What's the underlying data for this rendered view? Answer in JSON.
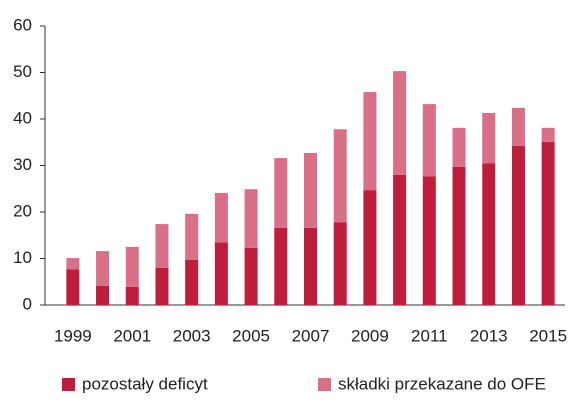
{
  "chart_data": {
    "type": "stacked_bar",
    "categories": [
      "1999",
      null,
      "2001",
      null,
      "2003",
      null,
      "2005",
      null,
      "2007",
      null,
      "2009",
      null,
      "2011",
      null,
      "2013",
      null,
      "2015"
    ],
    "series": [
      {
        "name": "pozostały deficyt",
        "color": "#be1e3c",
        "values": [
          7.7,
          4.1,
          3.9,
          8.0,
          9.7,
          13.5,
          12.3,
          16.6,
          16.6,
          17.8,
          24.7,
          28.0,
          27.7,
          29.7,
          30.5,
          34.2,
          35.1
        ]
      },
      {
        "name": "składki przekazane do OFE",
        "color": "#d97088",
        "values": [
          2.4,
          7.5,
          8.6,
          9.4,
          9.9,
          10.6,
          12.6,
          15.0,
          16.1,
          20.0,
          21.1,
          22.3,
          15.5,
          8.4,
          10.8,
          8.2,
          3.0
        ]
      }
    ],
    "ylim": [
      0,
      60
    ],
    "yticks": [
      0,
      10,
      20,
      30,
      40,
      50,
      60
    ],
    "legend": "bottom"
  }
}
